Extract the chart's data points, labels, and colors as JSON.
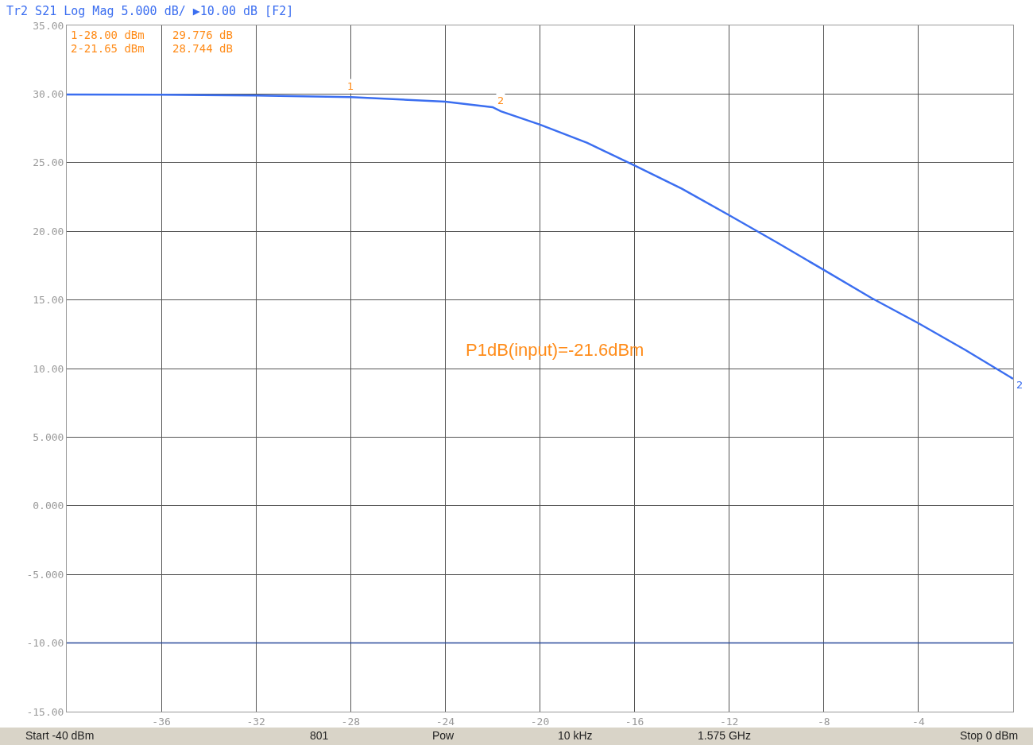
{
  "chart_data": {
    "type": "line",
    "title": "Tr2 S21 Log Mag 5.000 dB/ ▶10.00 dB [F2]",
    "x": [
      -40,
      -36,
      -32,
      -28,
      -24,
      -22,
      -21.65,
      -20,
      -18,
      -16,
      -14,
      -12,
      -10,
      -8,
      -6,
      -4,
      -2,
      0
    ],
    "series": [
      {
        "color": "#3b6ef0",
        "values": [
          29.97,
          29.95,
          29.9,
          29.78,
          29.44,
          29.04,
          28.74,
          27.77,
          26.44,
          24.8,
          23.1,
          21.17,
          19.2,
          17.18,
          15.15,
          13.3,
          11.33,
          9.25
        ]
      }
    ],
    "xlim": [
      -40,
      0
    ],
    "xticks": [
      -36,
      -32,
      -28,
      -24,
      -20,
      -16,
      -12,
      -8,
      -4
    ],
    "ylim": [
      -15,
      35
    ],
    "yticks": [
      {
        "value": 35,
        "label": "35.00"
      },
      {
        "value": 30,
        "label": "30.00"
      },
      {
        "value": 25,
        "label": "25.00"
      },
      {
        "value": 20,
        "label": "20.00"
      },
      {
        "value": 15,
        "label": "15.00"
      },
      {
        "value": 10,
        "label": "10.00"
      },
      {
        "value": 5,
        "label": "5.000"
      },
      {
        "value": 0,
        "label": "0.000"
      },
      {
        "value": -5,
        "label": "-5.000"
      },
      {
        "value": -10,
        "label": "-10.00"
      },
      {
        "value": -15,
        "label": "-15.00"
      }
    ],
    "grid": true,
    "marker": "none",
    "line_style": "solid",
    "ref_lines": [
      {
        "axis": "y",
        "value": -10,
        "color": "#2a4a9a",
        "line_style": "solid"
      }
    ],
    "annotations": [
      {
        "text": "1",
        "x": -28,
        "y": 29.78
      },
      {
        "text": "2",
        "x": -21.65,
        "y": 28.74
      },
      {
        "text": "2",
        "x": 0,
        "y": 9.25
      },
      "P1dB(input)=-21.6dBm",
      "1-28.00 dBm",
      "29.776 dB",
      "2-21.65 dBm",
      "28.744 dB",
      "Start -40 dBm",
      "801",
      "Pow",
      "10 kHz",
      "1.575 GHz",
      "Stop 0 dBm"
    ]
  }
}
